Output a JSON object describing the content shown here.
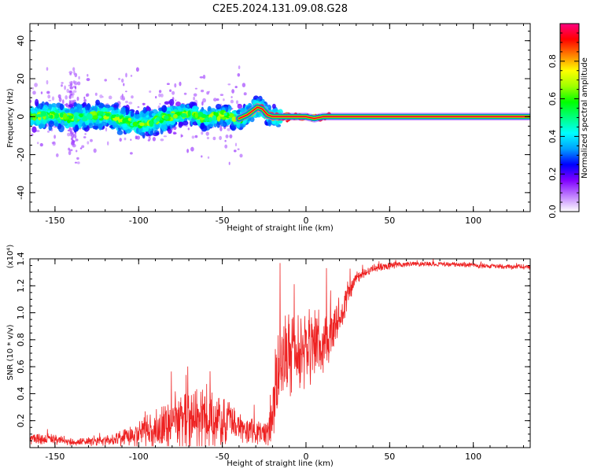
{
  "title": "C2E5.2024.131.09.08.G28",
  "chart_data": [
    {
      "type": "heatmap",
      "xlabel": "Height of straight line (km)",
      "ylabel": "Frequency (Hz)",
      "xlim": [
        -165,
        134
      ],
      "ylim": [
        -50,
        49
      ],
      "xticks": [
        -150,
        -100,
        -50,
        0,
        50,
        100
      ],
      "xtick_labels": [
        "-150",
        "-100",
        "-50",
        "0",
        "50",
        "100"
      ],
      "yticks": [
        -40,
        -20,
        0,
        20,
        40
      ],
      "ytick_labels": [
        "-40",
        "-20",
        "0",
        "20",
        "40"
      ],
      "colorbar": {
        "label": "Normalized spectral amplitude",
        "range": [
          0,
          1
        ],
        "ticks": [
          0.0,
          0.2,
          0.4,
          0.6,
          0.8
        ],
        "tick_labels": [
          "0.0",
          "0.2",
          "0.4",
          "0.6",
          "0.8"
        ],
        "colors": [
          "#ffffff",
          "#c080ff",
          "#8000ff",
          "#0000ff",
          "#00a0ff",
          "#00ffff",
          "#00ff80",
          "#00ff00",
          "#a0ff00",
          "#ffff00",
          "#ff8000",
          "#ff0000",
          "#ff0080"
        ]
      },
      "ridge": {
        "x": [
          -165,
          -150,
          -140,
          -130,
          -120,
          -110,
          -100,
          -90,
          -80,
          -70,
          -60,
          -50,
          -45,
          -40,
          -35,
          -32,
          -29,
          -26,
          -23,
          -20,
          -15,
          -10,
          -5,
          0,
          5,
          10,
          15,
          20,
          40,
          60,
          80,
          100,
          120,
          134
        ],
        "y": [
          0,
          1,
          -1,
          0,
          1,
          -2,
          -4,
          -2,
          0,
          2,
          -1,
          1,
          0,
          -1,
          1,
          3,
          5,
          4,
          1,
          0,
          0,
          0,
          0,
          0,
          -1,
          0,
          0,
          0,
          0,
          0,
          0,
          0,
          0,
          0
        ]
      }
    },
    {
      "type": "line",
      "xlabel": "Height of straight line (km)",
      "ylabel": "SNR (10 * v/v)",
      "multiplier": "(x10⁴)",
      "xlim": [
        -165,
        134
      ],
      "ylim": [
        0.0,
        1.4
      ],
      "xticks": [
        -150,
        -100,
        -50,
        0,
        50,
        100
      ],
      "xtick_labels": [
        "-150",
        "-100",
        "-50",
        "0",
        "50",
        "100"
      ],
      "yticks": [
        0.2,
        0.4,
        0.6,
        0.8,
        1.0,
        1.2,
        1.4
      ],
      "ytick_labels": [
        "0.2",
        "0.4",
        "0.6",
        "0.8",
        "1.0",
        "1.2",
        "1.4"
      ],
      "color": "#ee2222",
      "envelope": {
        "x": [
          -165,
          -150,
          -140,
          -130,
          -120,
          -110,
          -100,
          -90,
          -80,
          -70,
          -60,
          -50,
          -40,
          -30,
          -25,
          -22,
          -20,
          -18,
          -16,
          -14,
          -12,
          -10,
          -5,
          0,
          5,
          10,
          15,
          20,
          25,
          30,
          40,
          50,
          60,
          80,
          100,
          120,
          134
        ],
        "base": [
          0.07,
          0.06,
          0.04,
          0.04,
          0.05,
          0.07,
          0.1,
          0.13,
          0.16,
          0.17,
          0.19,
          0.2,
          0.16,
          0.12,
          0.1,
          0.14,
          0.25,
          0.45,
          0.6,
          0.65,
          0.72,
          0.7,
          0.72,
          0.74,
          0.72,
          0.78,
          0.86,
          0.98,
          1.14,
          1.26,
          1.33,
          1.35,
          1.36,
          1.36,
          1.35,
          1.34,
          1.34
        ],
        "noise": [
          0.05,
          0.04,
          0.03,
          0.03,
          0.04,
          0.06,
          0.1,
          0.16,
          0.22,
          0.24,
          0.26,
          0.18,
          0.12,
          0.1,
          0.08,
          0.14,
          0.4,
          0.5,
          0.45,
          0.4,
          0.35,
          0.35,
          0.32,
          0.3,
          0.3,
          0.26,
          0.2,
          0.16,
          0.1,
          0.05,
          0.03,
          0.03,
          0.02,
          0.02,
          0.02,
          0.02,
          0.02
        ]
      }
    }
  ]
}
